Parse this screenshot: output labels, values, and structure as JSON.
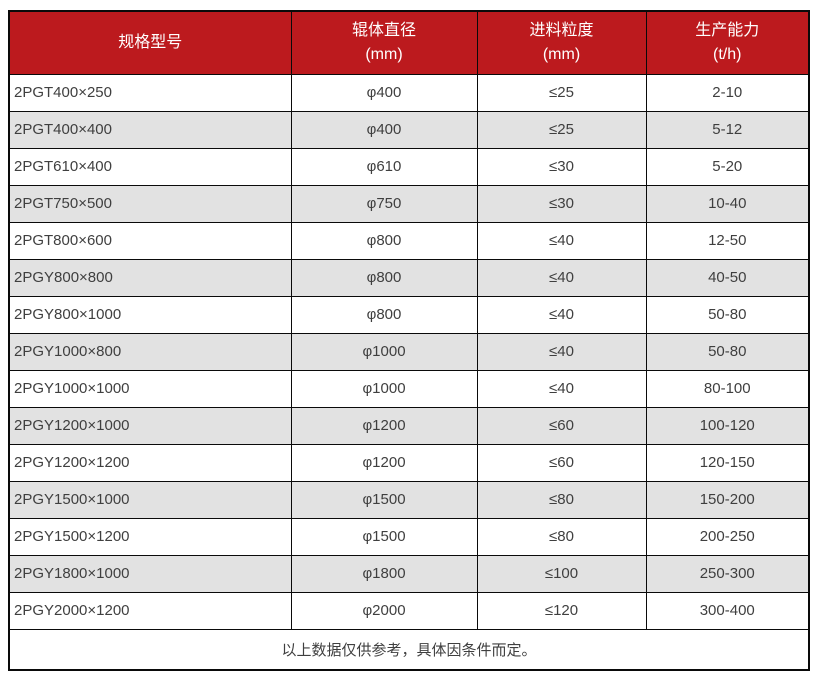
{
  "table": {
    "columns": [
      {
        "label": "规格型号",
        "unit": ""
      },
      {
        "label": "辊体直径",
        "unit": "(mm)"
      },
      {
        "label": "进料粒度",
        "unit": "(mm)"
      },
      {
        "label": "生产能力",
        "unit": "(t/h)"
      }
    ],
    "rows": [
      [
        "2PGT400×250",
        "φ400",
        "≤25",
        "2-10"
      ],
      [
        "2PGT400×400",
        "φ400",
        "≤25",
        "5-12"
      ],
      [
        "2PGT610×400",
        "φ610",
        "≤30",
        "5-20"
      ],
      [
        "2PGT750×500",
        "φ750",
        "≤30",
        "10-40"
      ],
      [
        "2PGT800×600",
        "φ800",
        "≤40",
        "12-50"
      ],
      [
        "2PGY800×800",
        "φ800",
        "≤40",
        "40-50"
      ],
      [
        "2PGY800×1000",
        "φ800",
        "≤40",
        "50-80"
      ],
      [
        "2PGY1000×800",
        "φ1000",
        "≤40",
        "50-80"
      ],
      [
        "2PGY1000×1000",
        "φ1000",
        "≤40",
        "80-100"
      ],
      [
        "2PGY1200×1000",
        "φ1200",
        "≤60",
        "100-120"
      ],
      [
        "2PGY1200×1200",
        "φ1200",
        "≤60",
        "120-150"
      ],
      [
        "2PGY1500×1000",
        "φ1500",
        "≤80",
        "150-200"
      ],
      [
        "2PGY1500×1200",
        "φ1500",
        "≤80",
        "200-250"
      ],
      [
        "2PGY1800×1000",
        "φ1800",
        "≤100",
        "250-300"
      ],
      [
        "2PGY2000×1200",
        "φ2000",
        "≤120",
        "300-400"
      ]
    ],
    "footnote": "以上数据仅供参考，具体因条件而定。"
  },
  "colors": {
    "header_bg": "#bc1a1e",
    "header_text": "#ffffff",
    "row_bg": "#ffffff",
    "row_alt_bg": "#e2e2e2",
    "border": "#0a0a0a",
    "body_text": "#3f3f3f"
  }
}
